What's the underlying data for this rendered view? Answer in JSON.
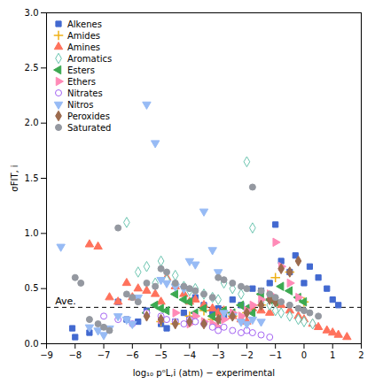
{
  "chart_data": {
    "type": "scatter",
    "xlabel": "log₁₀ pᵒL,i (atm) − experimental",
    "ylabel": "σFIT, i",
    "xlim": [
      -9,
      2
    ],
    "ylim": [
      0.0,
      3.0
    ],
    "xticks": [
      -9,
      -8,
      -7,
      -6,
      -5,
      -4,
      -3,
      -2,
      -1,
      0,
      1,
      2
    ],
    "yticks": [
      {
        "value": 0.0,
        "label": "0.0"
      },
      {
        "value": 0.5,
        "label": "0.5"
      },
      {
        "value": 1.0,
        "label": "1.0"
      },
      {
        "value": 1.5,
        "label": "1.5"
      },
      {
        "value": 2.0,
        "label": "2.0"
      },
      {
        "value": 2.5,
        "label": "2.5"
      },
      {
        "value": 3.0,
        "label": "3.0"
      }
    ],
    "legend": "upper left",
    "hlines": [
      {
        "y": 0.33,
        "line_style": "dashed"
      }
    ],
    "annotations": [
      {
        "text": "Ave.",
        "x": -8.7,
        "y": 0.36
      }
    ],
    "series": [
      {
        "name": "Alkenes",
        "marker": "square",
        "x": [
          -8.1,
          -8.0,
          -7.5,
          -6.5,
          -6.2,
          -5.8,
          -5.5,
          -5.0,
          -4.8,
          -4.5,
          -4.2,
          -4.0,
          -3.8,
          -3.5,
          -3.2,
          -3.0,
          -2.8,
          -2.5,
          -2.2,
          -2.0,
          -1.8,
          -1.5,
          -1.2,
          -1.0,
          -0.8,
          -0.5,
          -0.3,
          0.0,
          0.2,
          0.5,
          0.8,
          1.0,
          1.2
        ],
        "values": [
          0.14,
          0.06,
          0.1,
          0.38,
          0.22,
          0.2,
          0.3,
          0.18,
          0.14,
          0.2,
          0.28,
          0.22,
          0.42,
          0.35,
          0.28,
          0.32,
          0.25,
          0.4,
          0.35,
          0.3,
          0.5,
          0.48,
          0.55,
          1.08,
          0.75,
          0.65,
          0.8,
          0.55,
          0.7,
          0.6,
          0.5,
          0.4,
          0.35
        ]
      },
      {
        "name": "Amides",
        "marker": "plus",
        "x": [
          -5.0,
          -4.5,
          -4.0,
          -3.5,
          -3.2,
          -2.5,
          -2.0,
          -1.5,
          -1.0,
          -0.5,
          0.0
        ],
        "values": [
          0.2,
          0.18,
          0.25,
          0.3,
          0.22,
          0.25,
          0.28,
          0.35,
          0.6,
          0.65,
          0.38
        ]
      },
      {
        "name": "Amines",
        "marker": "triangle-up",
        "x": [
          -7.5,
          -7.2,
          -6.8,
          -6.5,
          -6.2,
          -6.0,
          -5.8,
          -5.5,
          -5.2,
          -5.0,
          -4.8,
          -4.5,
          -4.2,
          -4.0,
          -3.8,
          -3.5,
          -3.2,
          -3.0,
          -2.8,
          -2.5,
          -2.2,
          -2.0,
          -1.8,
          -1.5,
          -1.2,
          -1.0,
          -0.8,
          -0.5,
          -0.2,
          0.0,
          0.3,
          0.5,
          0.8,
          1.0,
          1.2,
          1.5
        ],
        "values": [
          0.9,
          0.88,
          0.42,
          0.38,
          0.55,
          0.42,
          0.5,
          0.48,
          0.45,
          0.38,
          0.6,
          0.52,
          0.45,
          0.38,
          0.4,
          0.35,
          0.32,
          0.28,
          0.3,
          0.25,
          0.22,
          0.2,
          0.32,
          0.3,
          0.28,
          0.4,
          0.35,
          0.3,
          0.25,
          0.22,
          0.18,
          0.15,
          0.12,
          0.1,
          0.08,
          0.06
        ]
      },
      {
        "name": "Aromatics",
        "marker": "diamond-open",
        "x": [
          -6.2,
          -5.8,
          -5.5,
          -5.2,
          -5.0,
          -4.8,
          -4.5,
          -4.2,
          -4.0,
          -3.8,
          -3.5,
          -3.2,
          -3.0,
          -2.8,
          -2.5,
          -2.2,
          -2.0,
          -1.8,
          -1.5,
          -1.2,
          -1.0,
          -0.8,
          -0.5,
          -0.2,
          0.0,
          0.3
        ],
        "values": [
          1.1,
          0.65,
          0.7,
          0.55,
          0.75,
          0.58,
          0.62,
          0.52,
          0.48,
          0.5,
          0.45,
          0.42,
          0.4,
          0.55,
          0.5,
          0.45,
          1.65,
          1.05,
          0.38,
          0.35,
          0.3,
          0.28,
          0.25,
          0.22,
          0.2,
          0.18
        ]
      },
      {
        "name": "Esters",
        "marker": "triangle-left",
        "x": [
          -5.5,
          -5.2,
          -5.0,
          -4.8,
          -4.5,
          -4.2,
          -4.0,
          -3.8,
          -3.5,
          -3.2,
          -3.0,
          -2.8,
          -2.5,
          -2.2,
          -2.0,
          -1.8,
          -1.5,
          -1.2,
          -1.0,
          -0.8,
          -0.5,
          -0.2,
          0.0
        ],
        "values": [
          0.28,
          0.35,
          0.32,
          0.3,
          0.45,
          0.4,
          0.38,
          0.28,
          0.32,
          0.25,
          0.22,
          0.3,
          0.28,
          0.35,
          0.32,
          0.28,
          0.45,
          0.4,
          0.38,
          0.52,
          0.48,
          0.42,
          0.38
        ]
      },
      {
        "name": "Ethers",
        "marker": "triangle-right",
        "x": [
          -5.0,
          -4.5,
          -4.0,
          -3.8,
          -3.5,
          -3.2,
          -3.0,
          -2.8,
          -2.5,
          -2.2,
          -2.0,
          -1.8,
          -1.5,
          -1.2,
          -1.0,
          -0.8,
          -0.5,
          -0.2
        ],
        "values": [
          0.22,
          0.28,
          0.18,
          0.25,
          0.2,
          0.18,
          0.15,
          0.22,
          0.28,
          0.25,
          0.3,
          0.35,
          0.4,
          0.45,
          0.92,
          0.7,
          0.55,
          0.42
        ]
      },
      {
        "name": "Nitrates",
        "marker": "circle-open",
        "x": [
          -7.0,
          -6.5,
          -6.0,
          -5.5,
          -5.0,
          -4.8,
          -4.5,
          -4.2,
          -4.0,
          -3.8,
          -3.5,
          -3.2,
          -3.0,
          -2.8,
          -2.5,
          -2.2,
          -2.0,
          -1.8,
          -1.5,
          -1.2
        ],
        "values": [
          0.25,
          0.22,
          0.18,
          0.28,
          0.25,
          0.22,
          0.2,
          0.18,
          0.22,
          0.2,
          0.18,
          0.15,
          0.12,
          0.15,
          0.12,
          0.1,
          0.12,
          0.1,
          0.08,
          0.06
        ]
      },
      {
        "name": "Nitros",
        "marker": "triangle-down",
        "x": [
          -8.5,
          -7.5,
          -7.2,
          -7.0,
          -6.8,
          -6.5,
          -6.2,
          -6.0,
          -5.8,
          -5.5,
          -5.2,
          -5.0,
          -4.8,
          -4.5,
          -4.2,
          -4.0,
          -3.8,
          -3.5,
          -3.2,
          -3.0,
          -2.8,
          -2.5,
          -2.2,
          -2.0,
          -1.8,
          -1.5
        ],
        "values": [
          0.88,
          0.15,
          0.12,
          0.08,
          0.14,
          0.25,
          0.22,
          0.18,
          0.42,
          2.17,
          1.82,
          0.58,
          0.55,
          0.52,
          0.5,
          0.75,
          0.72,
          1.2,
          0.85,
          0.65,
          0.28,
          0.25,
          0.2,
          0.18,
          0.22,
          0.2
        ]
      },
      {
        "name": "Peroxides",
        "marker": "diamond",
        "x": [
          -5.5,
          -5.0,
          -4.5,
          -4.0,
          -3.5,
          -3.0,
          -2.5,
          -2.0,
          -1.5,
          -1.2,
          -1.0,
          -0.8,
          -0.5,
          -0.2
        ],
        "values": [
          0.25,
          0.22,
          0.18,
          0.2,
          0.18,
          0.22,
          0.25,
          0.28,
          0.35,
          0.4,
          0.38,
          0.68,
          0.65,
          0.75
        ]
      },
      {
        "name": "Saturated",
        "marker": "circle",
        "x": [
          -8.0,
          -7.8,
          -7.5,
          -7.2,
          -7.0,
          -6.8,
          -6.5,
          -6.2,
          -6.0,
          -5.8,
          -5.5,
          -5.2,
          -5.0,
          -4.8,
          -4.5,
          -4.2,
          -4.0,
          -3.8,
          -3.5,
          -3.2,
          -3.0,
          -2.8,
          -2.5,
          -2.2,
          -2.0,
          -1.8,
          -1.5,
          -1.2,
          -1.0,
          -0.8,
          -0.5,
          -0.2,
          0.0,
          0.2,
          0.5
        ],
        "values": [
          0.6,
          0.55,
          0.22,
          0.18,
          0.15,
          0.12,
          1.05,
          0.45,
          0.42,
          0.38,
          0.55,
          0.52,
          0.68,
          0.65,
          0.55,
          0.52,
          0.5,
          0.48,
          0.45,
          0.42,
          0.6,
          0.58,
          0.55,
          0.52,
          0.5,
          1.42,
          0.48,
          0.45,
          0.42,
          0.38,
          0.35,
          0.32,
          0.3,
          0.28,
          0.25
        ]
      }
    ]
  }
}
